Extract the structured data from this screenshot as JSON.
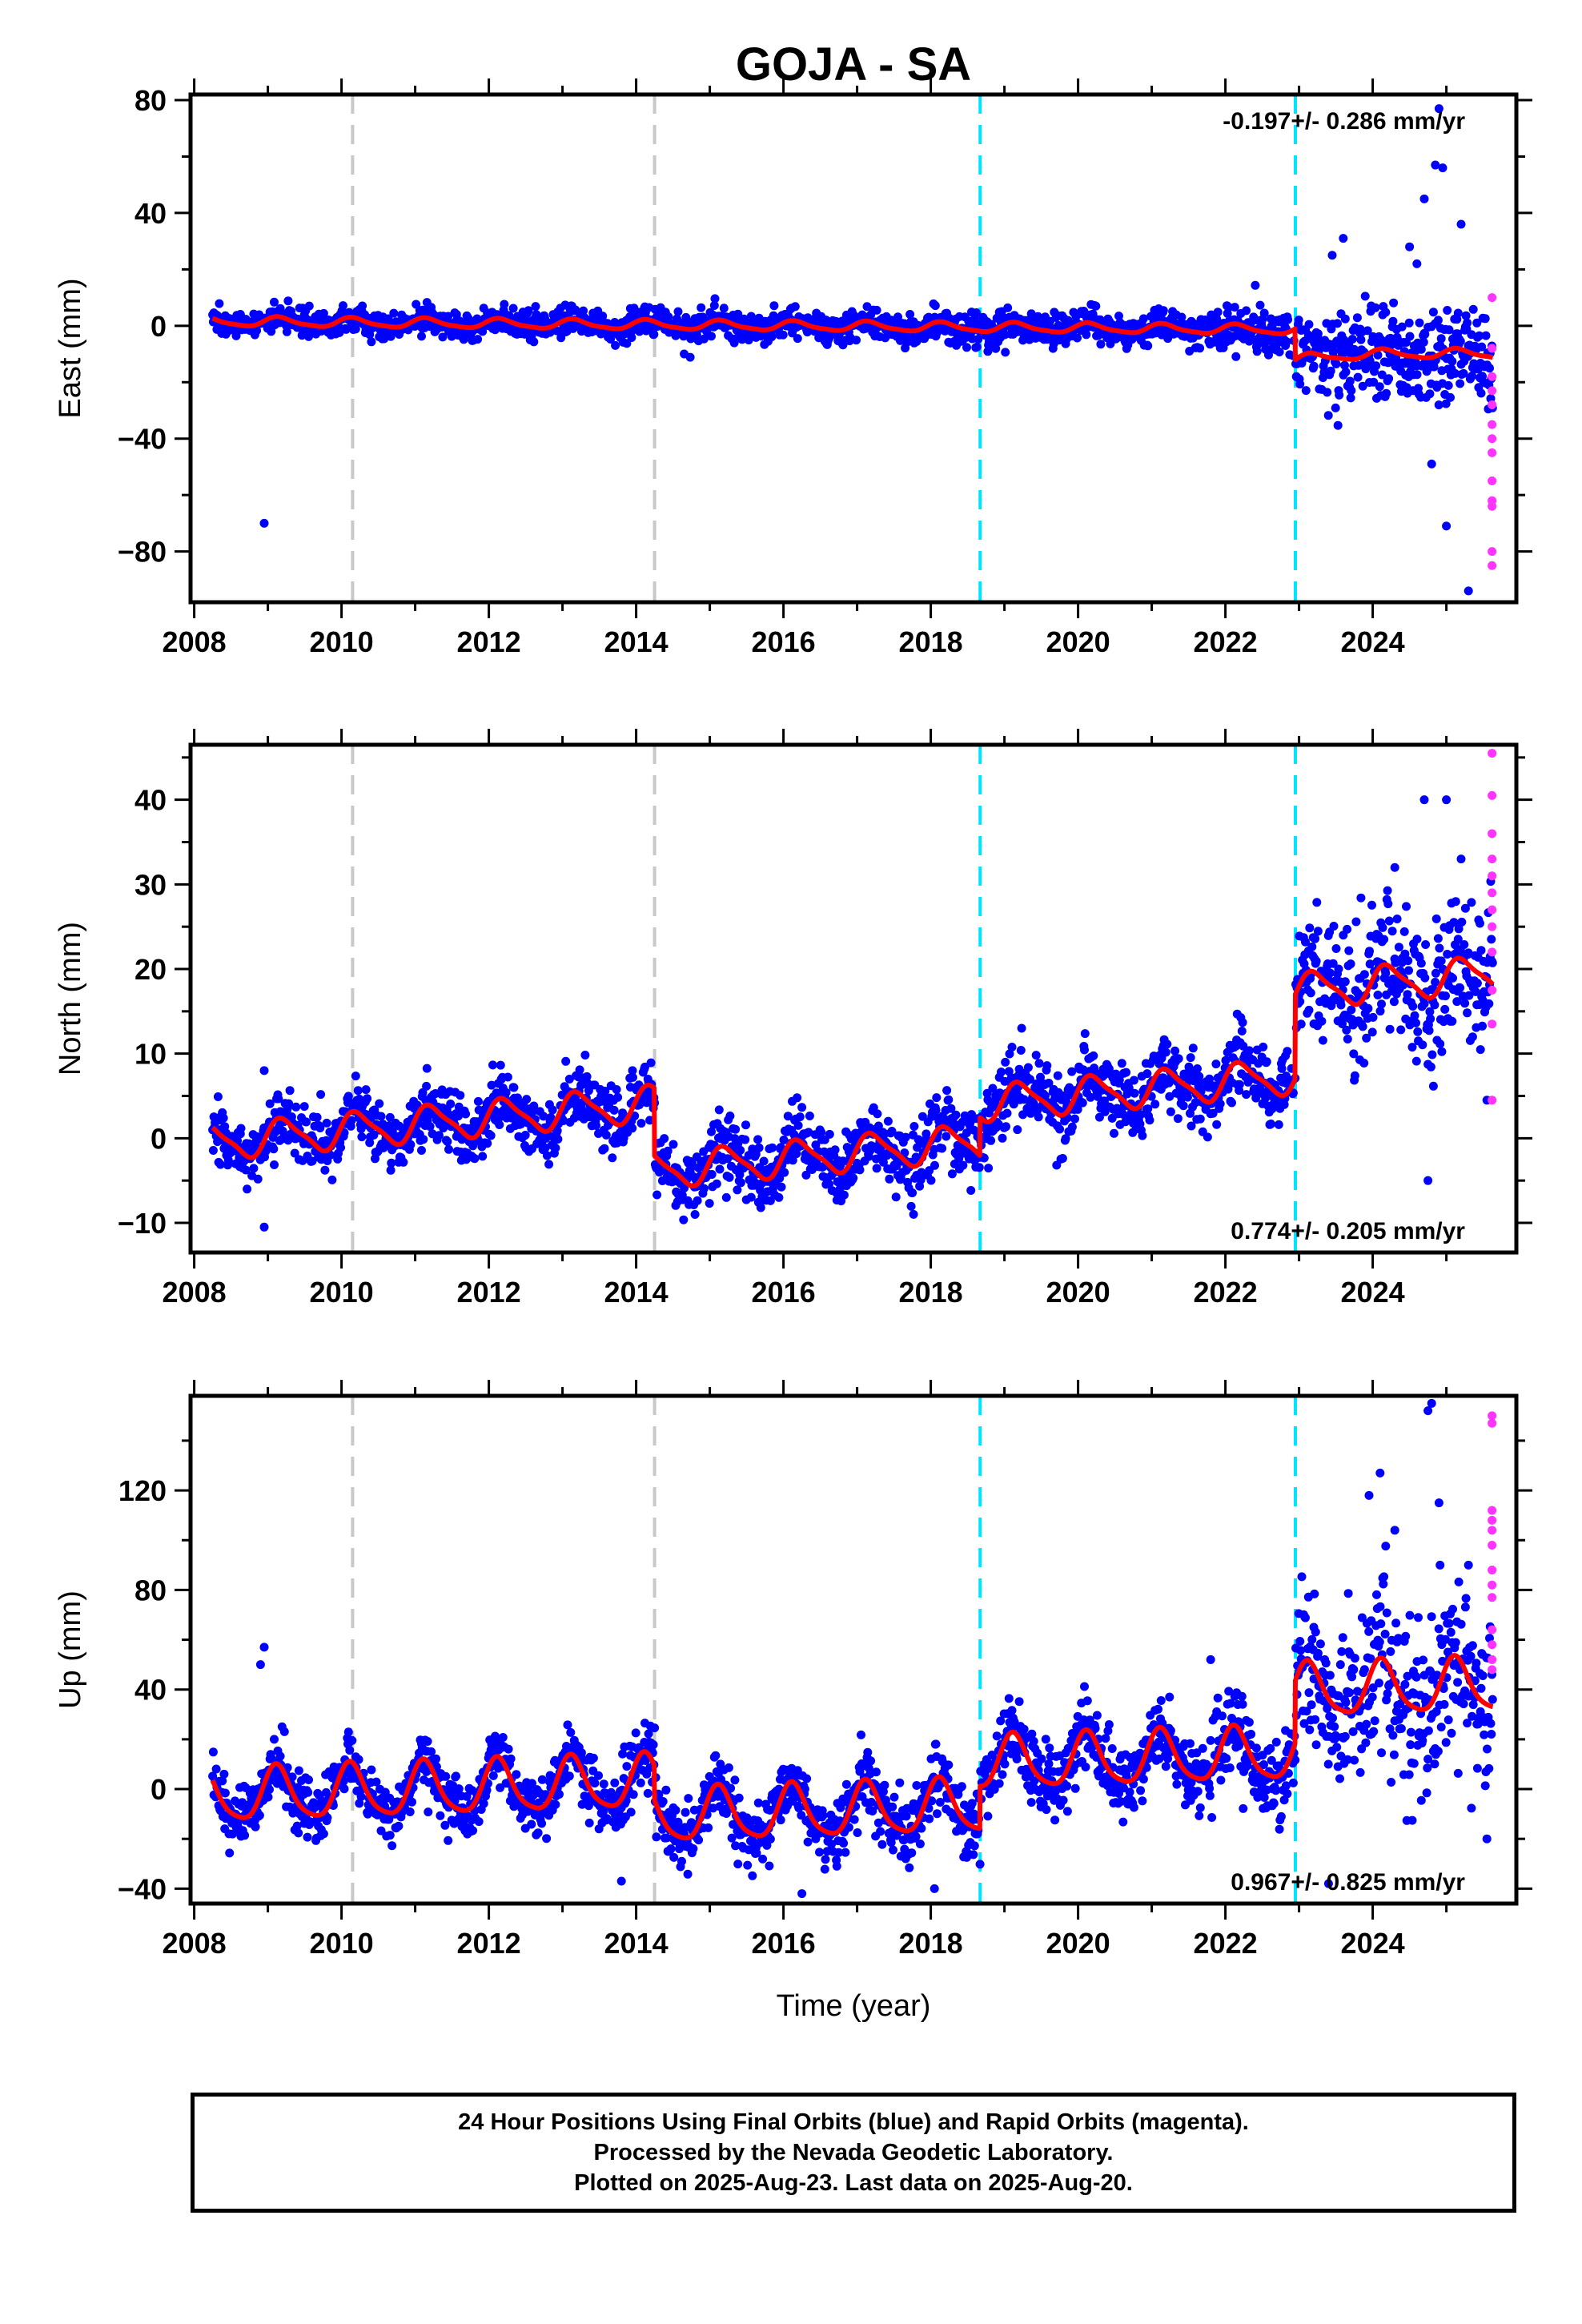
{
  "chart_data": {
    "title": "GOJA - SA",
    "xlabel": "Time (year)",
    "xlim": [
      2007.95,
      2025.95
    ],
    "xticks": [
      2008,
      2010,
      2012,
      2014,
      2016,
      2018,
      2020,
      2022,
      2024
    ],
    "xtick_labels": [
      "2008",
      "2010",
      "2012",
      "2014",
      "2016",
      "2018",
      "2020",
      "2022",
      "2024"
    ],
    "data_range": [
      2008.25,
      2025.63
    ],
    "equipment_changes": [
      2010.15,
      2014.25
    ],
    "offset_events": [
      2018.67,
      2022.95
    ],
    "colors": {
      "final": "#0000ff",
      "rapid": "#ff33ff",
      "model": "#ff0000",
      "equip": "#c8c8c8",
      "event": "#00e5ff"
    },
    "panels": [
      {
        "name": "east",
        "type": "scatter",
        "ylabel": "East (mm)",
        "ylim": [
          -98,
          82
        ],
        "yticks": [
          -80,
          -40,
          0,
          40,
          80
        ],
        "ytick_labels": [
          "−80",
          "−40",
          "0",
          "40",
          "80"
        ],
        "rate_text": "-0.197+/- 0.286 mm/yr",
        "rate_pos": "top-right",
        "model": {
          "trend": -0.197,
          "intercept": 1.5,
          "annual": 1.6,
          "semiannual": 0.4,
          "phase": 0.6,
          "offsets": [
            [
              2022.95,
              -11
            ]
          ],
          "postseismic": {
            "t0": 2022.95,
            "amp": 3,
            "tau": 0.6
          }
        },
        "noise": [
          [
            2008.25,
            2.2
          ],
          [
            2022.0,
            3.0
          ],
          [
            2022.95,
            6.0
          ],
          [
            2023.3,
            8.0
          ],
          [
            2025.7,
            9.0
          ]
        ],
        "final_points": [
          [
            2008.95,
            -70
          ],
          [
            2024.9,
            77
          ],
          [
            2024.85,
            57
          ],
          [
            2024.95,
            56
          ],
          [
            2023.6,
            31
          ],
          [
            2023.45,
            25
          ],
          [
            2024.5,
            28
          ],
          [
            2025.2,
            36
          ],
          [
            2024.8,
            -49
          ],
          [
            2025.0,
            -71
          ],
          [
            2025.3,
            -94
          ],
          [
            2024.7,
            45
          ],
          [
            2024.6,
            22
          ]
        ],
        "rapid_points": [
          [
            2025.62,
            10
          ],
          [
            2025.62,
            -18
          ],
          [
            2025.62,
            -23
          ],
          [
            2025.62,
            -28
          ],
          [
            2025.62,
            -35
          ],
          [
            2025.62,
            -40
          ],
          [
            2025.62,
            -45
          ],
          [
            2025.62,
            -55
          ],
          [
            2025.62,
            -62
          ],
          [
            2025.62,
            -64
          ],
          [
            2025.62,
            -80
          ],
          [
            2025.62,
            -85
          ],
          [
            2025.62,
            -8
          ]
        ]
      },
      {
        "name": "north",
        "type": "scatter",
        "ylabel": "North (mm)",
        "ylim": [
          -13.5,
          46.5
        ],
        "yticks": [
          -10,
          0,
          10,
          20,
          30,
          40
        ],
        "ytick_labels": [
          "−10",
          "0",
          "10",
          "20",
          "30",
          "40"
        ],
        "rate_text": "0.774+/- 0.205 mm/yr",
        "rate_pos": "bottom-right",
        "model": {
          "trend": 0.774,
          "intercept": -0.5,
          "annual": 2.0,
          "semiannual": 0.5,
          "phase": 0.2,
          "offsets": [
            [
              2014.25,
              -8
            ],
            [
              2018.67,
              4.5
            ],
            [
              2022.95,
              10
            ]
          ],
          "postseismic": null
        },
        "noise": [
          [
            2008.25,
            1.7
          ],
          [
            2014.25,
            1.9
          ],
          [
            2022.95,
            2.4
          ],
          [
            2023.4,
            3.5
          ],
          [
            2025.7,
            4.5
          ]
        ],
        "final_points": [
          [
            2008.95,
            8
          ],
          [
            2008.95,
            -10.5
          ],
          [
            2024.75,
            -5
          ],
          [
            2024.7,
            40
          ],
          [
            2025.0,
            40
          ],
          [
            2025.55,
            4.5
          ],
          [
            2023.6,
            24
          ],
          [
            2025.2,
            33
          ],
          [
            2024.3,
            32
          ],
          [
            2013.95,
            8
          ]
        ],
        "rapid_points": [
          [
            2025.62,
            45.5
          ],
          [
            2025.62,
            40.5
          ],
          [
            2025.62,
            36
          ],
          [
            2025.62,
            33
          ],
          [
            2025.62,
            31
          ],
          [
            2025.62,
            29
          ],
          [
            2025.62,
            27
          ],
          [
            2025.62,
            22
          ],
          [
            2025.62,
            17.5
          ],
          [
            2025.62,
            13.5
          ],
          [
            2025.62,
            4.5
          ],
          [
            2025.62,
            25
          ]
        ]
      },
      {
        "name": "up",
        "type": "scatter",
        "ylabel": "Up (mm)",
        "ylim": [
          -46,
          158
        ],
        "yticks": [
          -40,
          0,
          40,
          80,
          120
        ],
        "ytick_labels": [
          "−40",
          "0",
          "40",
          "80",
          "120"
        ],
        "rate_text": "0.967+/- 0.825 mm/yr",
        "rate_pos": "bottom-right",
        "model": {
          "trend": 0.967,
          "intercept": -3,
          "annual": 10.5,
          "semiannual": 2.0,
          "phase": 0.8,
          "offsets": [
            [
              2014.25,
              -14
            ],
            [
              2018.67,
              17
            ],
            [
              2022.95,
              25
            ]
          ],
          "postseismic": null
        },
        "noise": [
          [
            2008.25,
            5.5
          ],
          [
            2021.5,
            7.0
          ],
          [
            2022.95,
            12.0
          ],
          [
            2023.5,
            18.0
          ],
          [
            2025.7,
            20.0
          ]
        ],
        "final_points": [
          [
            2008.95,
            57
          ],
          [
            2008.9,
            50
          ],
          [
            2024.8,
            155
          ],
          [
            2024.75,
            152
          ],
          [
            2024.1,
            127
          ],
          [
            2023.95,
            118
          ],
          [
            2024.9,
            115
          ],
          [
            2023.2,
            65
          ],
          [
            2021.8,
            52
          ],
          [
            2013.8,
            -37
          ],
          [
            2016.25,
            -42
          ],
          [
            2018.05,
            -40
          ],
          [
            2025.55,
            -20
          ],
          [
            2023.4,
            -38
          ],
          [
            2024.3,
            104
          ],
          [
            2025.3,
            90
          ]
        ],
        "rapid_points": [
          [
            2025.62,
            150
          ],
          [
            2025.62,
            147
          ],
          [
            2025.62,
            112
          ],
          [
            2025.62,
            108
          ],
          [
            2025.62,
            104
          ],
          [
            2025.62,
            88
          ],
          [
            2025.62,
            82
          ],
          [
            2025.62,
            77
          ],
          [
            2025.62,
            64
          ],
          [
            2025.62,
            58
          ],
          [
            2025.62,
            52
          ],
          [
            2025.62,
            48
          ],
          [
            2025.62,
            98
          ]
        ]
      }
    ]
  },
  "footer": {
    "line1": "24 Hour Positions Using Final Orbits (blue) and Rapid Orbits (magenta).",
    "line2": "Processed by the Nevada Geodetic Laboratory.",
    "line3": "Plotted on 2025-Aug-23. Last data on 2025-Aug-20."
  }
}
